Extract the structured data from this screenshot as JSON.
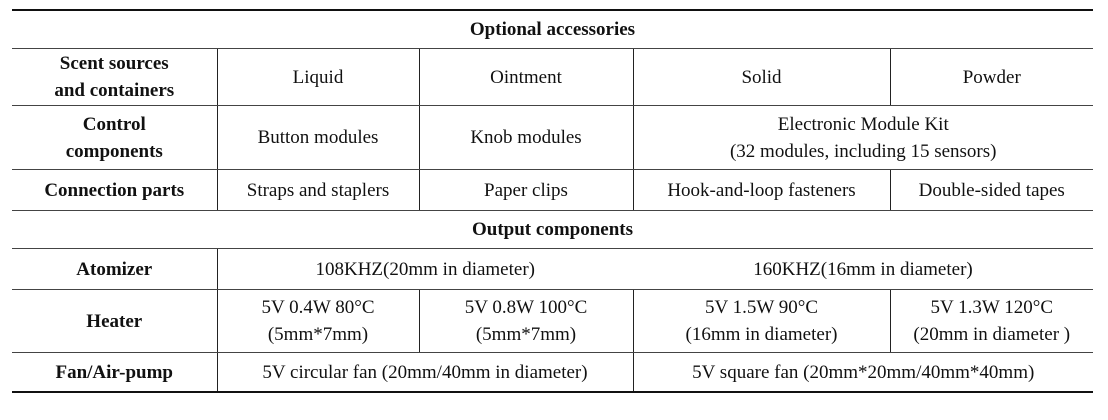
{
  "table": {
    "section_optional": "Optional accessories",
    "scent": {
      "label_line1": "Scent sources",
      "label_line2": "and containers",
      "cells": [
        "Liquid",
        "Ointment",
        "Solid",
        "Powder"
      ]
    },
    "control": {
      "label_line1": "Control",
      "label_line2": "components",
      "cells": [
        "Button modules",
        "Knob modules"
      ],
      "kit_line1": "Electronic Module Kit",
      "kit_line2": "(32 modules, including 15 sensors)"
    },
    "connection": {
      "label": "Connection parts",
      "cells": [
        "Straps and staplers",
        "Paper clips",
        "Hook-and-loop fasteners",
        "Double-sided tapes"
      ]
    },
    "section_output": "Output components",
    "atomizer": {
      "label": "Atomizer",
      "cells": [
        "108KHZ(20mm in diameter)",
        "160KHZ(16mm in diameter)"
      ]
    },
    "heater": {
      "label": "Heater",
      "cells": [
        {
          "line1": "5V 0.4W 80°C",
          "line2": "(5mm*7mm)"
        },
        {
          "line1": "5V 0.8W 100°C",
          "line2": "(5mm*7mm)"
        },
        {
          "line1": "5V 1.5W 90°C",
          "line2": "(16mm in diameter)"
        },
        {
          "line1": "5V 1.3W 120°C",
          "line2": "(20mm in diameter )"
        }
      ]
    },
    "fan": {
      "label": "Fan/Air-pump",
      "cells": [
        "5V circular fan (20mm/40mm in diameter)",
        "5V square fan (20mm*20mm/40mm*40mm)"
      ]
    }
  }
}
